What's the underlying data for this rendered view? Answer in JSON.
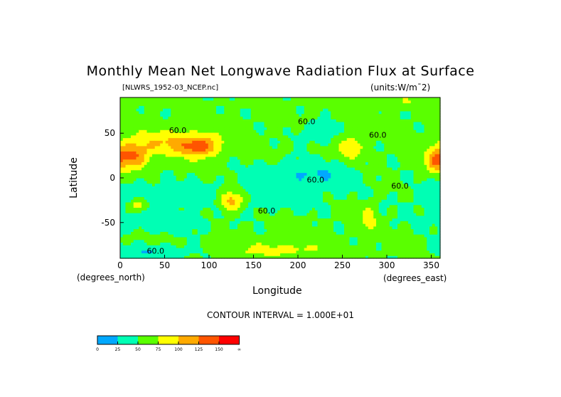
{
  "chart_data": {
    "type": "heatmap",
    "title": "Monthly Mean Net Longwave Radiation Flux at Surface",
    "subtitle_left": "[NLWRS_1952-03_NCEP.nc]",
    "subtitle_right": "(units:W/m¯2)",
    "xlabel": "Longitude",
    "ylabel": "Latitude",
    "x_units": "(degrees_east)",
    "y_units": "(degrees_north)",
    "xlim": [
      0,
      360
    ],
    "ylim": [
      -90,
      90
    ],
    "x_ticks": [
      "0",
      "50",
      "100",
      "150",
      "200",
      "250",
      "300",
      "350"
    ],
    "x_tick_values": [
      0,
      50,
      100,
      150,
      200,
      250,
      300,
      350
    ],
    "y_ticks": [
      "50",
      "0",
      "-50"
    ],
    "y_tick_values": [
      50,
      0,
      -50
    ],
    "contour_interval_text": "CONTOUR INTERVAL = 1.000E+01",
    "contour_labels": [
      "60.0",
      "60.0",
      "60.0",
      "60.0",
      "60.0",
      "60.0",
      "60.0"
    ],
    "colorbar": {
      "labels": [
        "0",
        "25",
        "50",
        "75",
        "100",
        "125",
        "150",
        "∞"
      ],
      "colors": [
        "#00a8ff",
        "#00ffb4",
        "#5aff00",
        "#ffff00",
        "#ffaa00",
        "#ff5500",
        "#ff0000"
      ]
    }
  }
}
